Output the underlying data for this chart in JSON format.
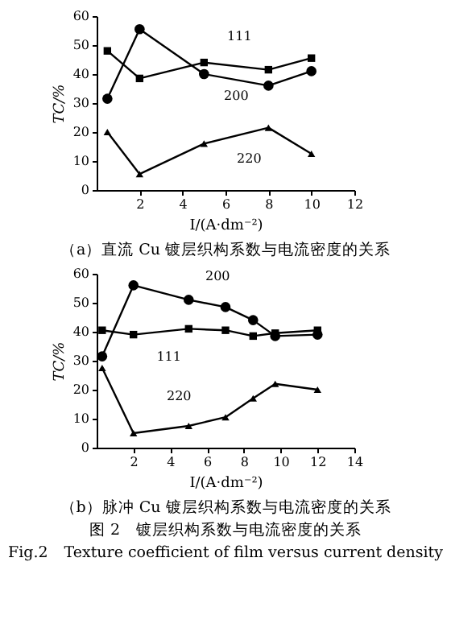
{
  "chart_data": [
    {
      "type": "line",
      "title": "（a）直流 Cu 镀层织构系数与电流密度的关系",
      "xlabel": "I/(A·dm⁻²)",
      "ylabel": "TC/%",
      "xlim": [
        0,
        12
      ],
      "xticks": [
        2,
        4,
        6,
        8,
        10,
        12
      ],
      "ylim": [
        0,
        60
      ],
      "yticks": [
        0,
        10,
        20,
        30,
        40,
        50,
        60
      ],
      "grid": false,
      "legend": false,
      "x": [
        0.5,
        2,
        5,
        8,
        10
      ],
      "series": [
        {
          "name": "111",
          "color": "#000000",
          "marker": "square",
          "values": [
            48,
            38.5,
            44,
            41.5,
            45.5
          ]
        },
        {
          "name": "200",
          "color": "#000000",
          "marker": "circle",
          "values": [
            31.5,
            55.5,
            40,
            36,
            41
          ]
        },
        {
          "name": "220",
          "color": "#000000",
          "marker": "triangle",
          "values": [
            20,
            5.5,
            16,
            21.5,
            12.5
          ]
        }
      ]
    },
    {
      "type": "line",
      "title": "（b）脉冲 Cu 镀层织构系数与电流密度的关系",
      "xlabel": "I/(A·dm⁻²)",
      "ylabel": "TC/%",
      "xlim": [
        0,
        14
      ],
      "xticks": [
        2,
        4,
        6,
        8,
        10,
        12,
        14
      ],
      "ylim": [
        0,
        60
      ],
      "yticks": [
        0,
        10,
        20,
        30,
        40,
        50,
        60
      ],
      "grid": false,
      "legend": false,
      "x": [
        0.3,
        2,
        5,
        7,
        8.5,
        9.7,
        12
      ],
      "series": [
        {
          "name": "200",
          "color": "#000000",
          "marker": "circle",
          "values": [
            31.5,
            56,
            51,
            48.5,
            44,
            38.5,
            39
          ]
        },
        {
          "name": "111",
          "color": "#000000",
          "marker": "square",
          "values": [
            40.5,
            39,
            41,
            40.5,
            38.5,
            39.5,
            40.5
          ]
        },
        {
          "name": "220",
          "color": "#000000",
          "marker": "triangle",
          "values": [
            27.5,
            5,
            7.5,
            10.5,
            17,
            22,
            20
          ]
        }
      ],
      "annotations": [
        "图 2　镀层织构系数与电流密度的关系",
        "Fig.2　Texture coefficient of film versus current density"
      ]
    }
  ]
}
